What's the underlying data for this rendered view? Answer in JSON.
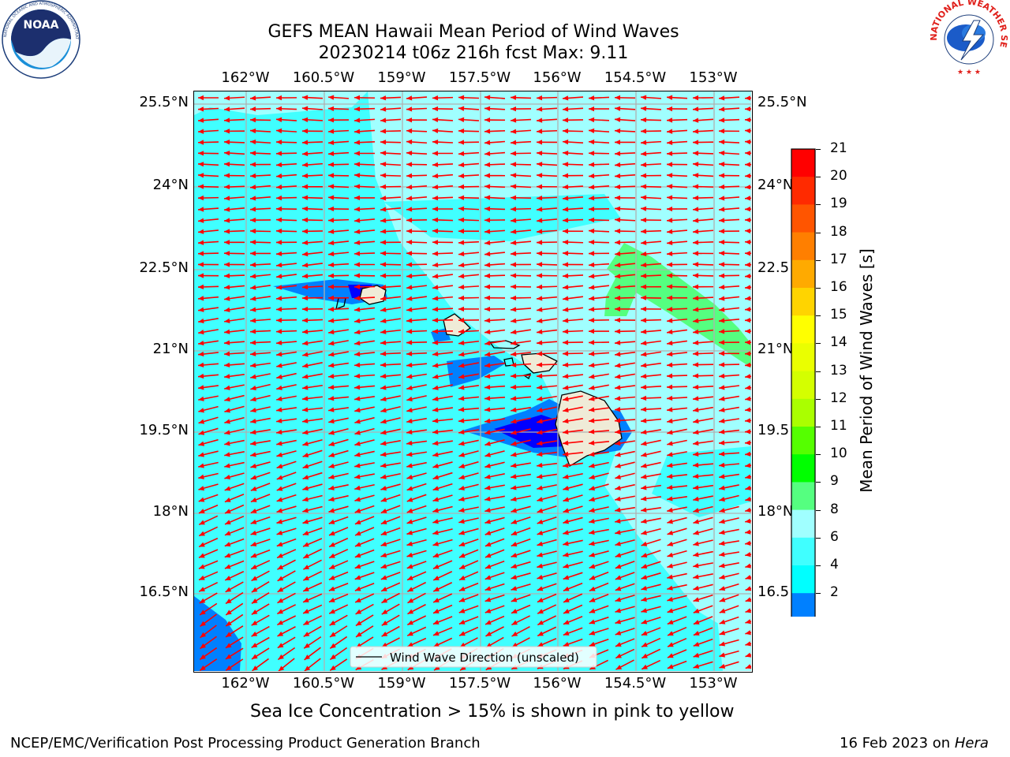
{
  "header": {
    "title_line1": "GEFS MEAN Hawaii Mean Period of Wind Waves",
    "title_line2": "20230214 t06z 216h fcst   Max: 9.11"
  },
  "logos": {
    "noaa_text": "NOAA",
    "noaa_ring_text": "NATIONAL OCEANIC AND ATMOSPHERIC ADMINISTRATION · U.S. DEPARTMENT OF COMMERCE",
    "nws_ring_text": "NATIONAL WEATHER SERVICE"
  },
  "map": {
    "lon_labels": [
      "162°W",
      "160.5°W",
      "159°W",
      "157.5°W",
      "156°W",
      "154.5°W",
      "153°W"
    ],
    "lat_labels_left": [
      "25.5°N",
      "24°N",
      "22.5°N",
      "21°N",
      "19.5°N",
      "18°N",
      "16.5°N"
    ],
    "lat_labels_right": [
      "25.5°N",
      "24°N",
      "22.5",
      "21°N",
      "19.5",
      "18°N",
      "16.5"
    ],
    "legend_label": "Wind Wave Direction (unscaled)",
    "arrow_color": "#ff0000",
    "land_color": "#efebd7"
  },
  "colorbar": {
    "label": "Mean Period of Wind Waves [s]",
    "ticks": [
      "21",
      "20",
      "19",
      "18",
      "17",
      "16",
      "15",
      "14",
      "13",
      "12",
      "11",
      "10",
      "9",
      "8",
      "6",
      "4",
      "2"
    ],
    "colors_top_to_bottom": [
      "#ff0000",
      "#ff2a00",
      "#ff5500",
      "#ff7f00",
      "#ffaa00",
      "#ffd400",
      "#ffff00",
      "#eaff00",
      "#d4ff00",
      "#aaff00",
      "#55ff00",
      "#00ff00",
      "#55ff80",
      "#a0ffff",
      "#40ffff",
      "#00ffff",
      "#0080ff"
    ],
    "under_color": "#0000ff"
  },
  "footer": {
    "note": "Sea Ice Concentration > 15% is shown in pink to yellow",
    "credit": "NCEP/EMC/Verification Post Processing Product Generation Branch",
    "date_text": "16 Feb 2023 on ",
    "machine": "Hera"
  }
}
